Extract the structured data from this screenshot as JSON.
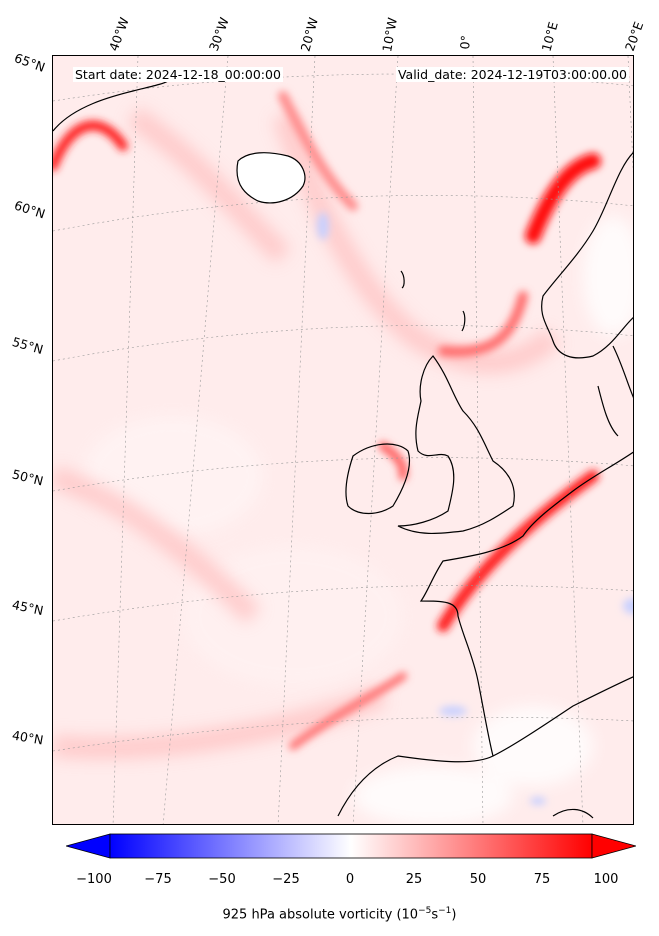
{
  "map": {
    "start_date": "Start date: 2024-12-18_00:00:00",
    "valid_date": "Valid_date: 2024-12-19T03:00:00.00",
    "lon_labels": [
      "40°W",
      "30°W",
      "20°W",
      "10°W",
      "0°",
      "10°E",
      "20°E"
    ],
    "lat_labels": [
      "65°N",
      "60°N",
      "55°N",
      "50°N",
      "45°N",
      "40°N"
    ],
    "colors": {
      "land_coast": "#000000",
      "positive": "#ff0000",
      "negative": "#0000ff"
    }
  },
  "colorbar": {
    "ticks": [
      "−100",
      "−75",
      "−50",
      "−25",
      "0",
      "25",
      "50",
      "75",
      "100"
    ],
    "label_prefix": "925 hPa absolute vorticity (10",
    "label_exp1": "−5",
    "label_mid": "s",
    "label_exp2": "−1",
    "label_suffix": ")"
  }
}
